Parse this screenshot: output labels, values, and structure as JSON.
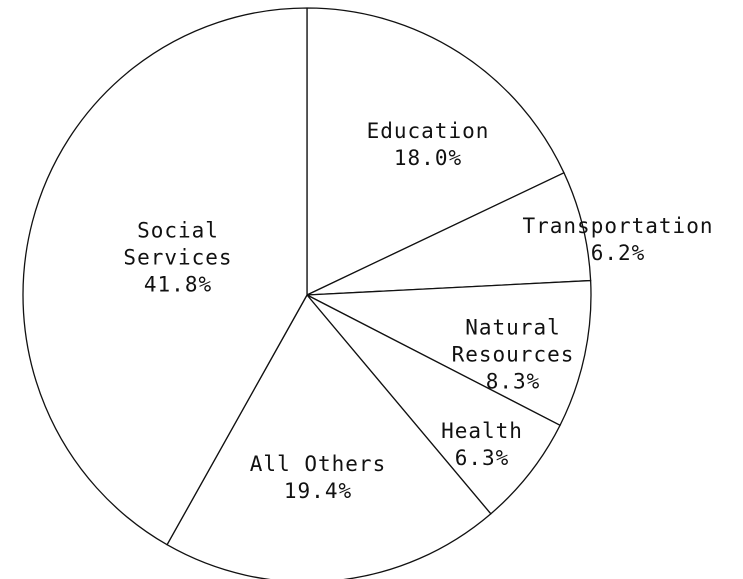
{
  "chart_data": {
    "type": "pie",
    "categories": [
      "Education",
      "Transportation",
      "Natural Resources",
      "Health",
      "All Others",
      "Social Services"
    ],
    "values": [
      18.0,
      6.2,
      8.3,
      6.3,
      19.4,
      41.8
    ],
    "value_labels": [
      "18.0%",
      "6.2%",
      "8.3%",
      "6.3%",
      "19.4%",
      "41.8%"
    ],
    "color": "#ffffff"
  }
}
